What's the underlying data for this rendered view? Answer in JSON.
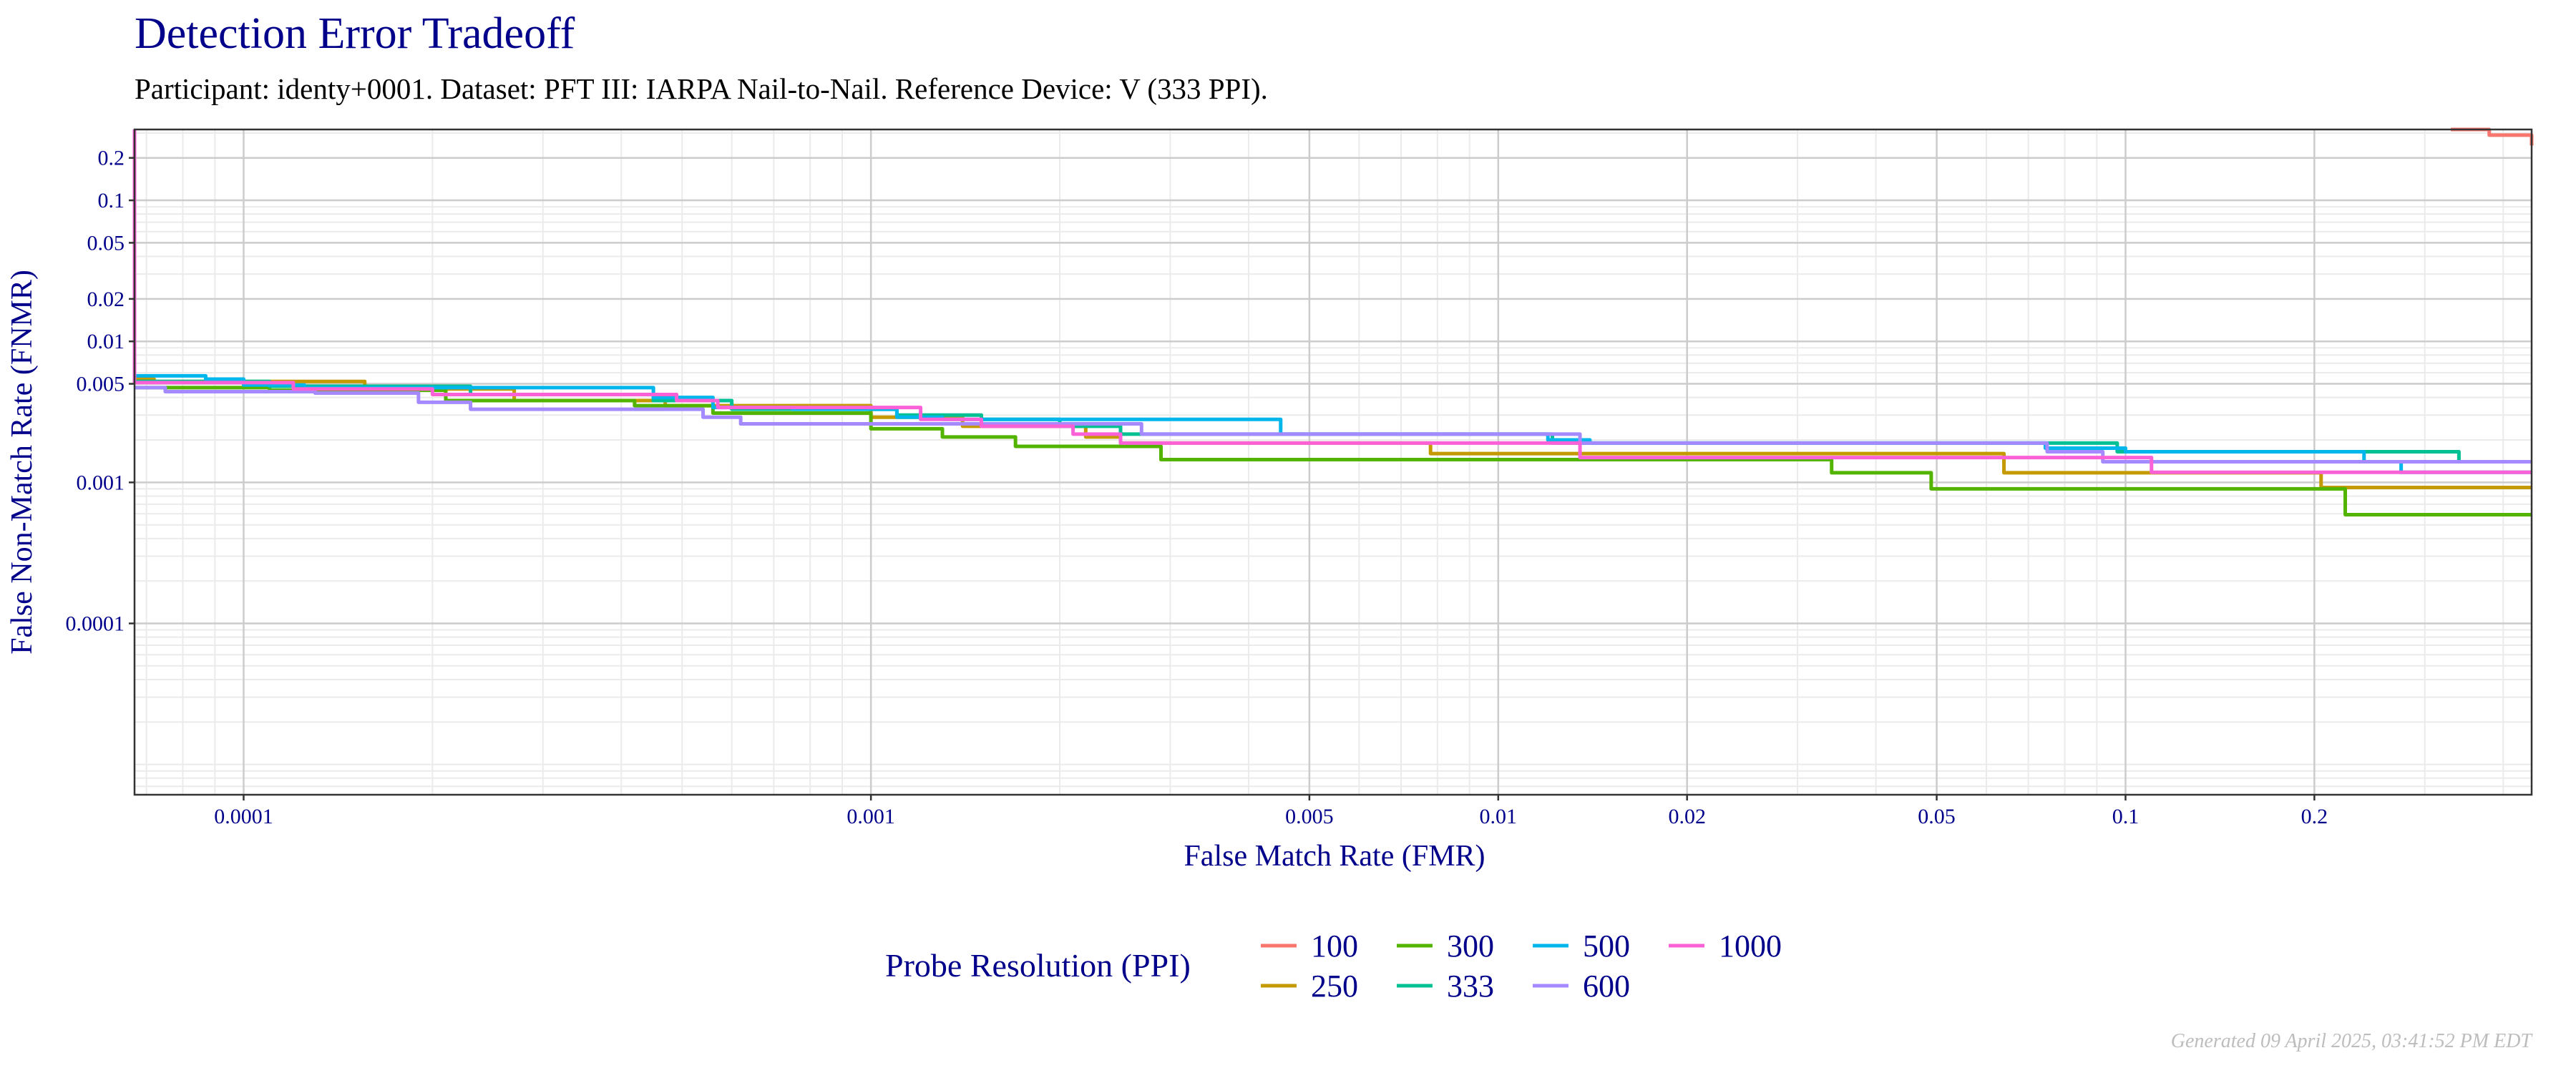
{
  "title": "Detection Error Tradeoff",
  "subtitle": "Participant: identy+0001. Dataset: PFT III: IARPA Nail-to-Nail. Reference Device: V (333 PPI).",
  "footer": "Generated 09 April 2025, 03:41:52 PM EDT",
  "chart_data": {
    "type": "line",
    "step": true,
    "xlabel": "False Match Rate (FMR)",
    "ylabel": "False Non-Match Rate (FNMR)",
    "xscale": "log",
    "yscale": "log",
    "xlim": [
      6.7e-05,
      0.444
    ],
    "ylim": [
      6.1e-06,
      0.318
    ],
    "grid": true,
    "xticks": [
      0.0001,
      0.001,
      0.005,
      0.01,
      0.02,
      0.05,
      0.1,
      0.2
    ],
    "xtick_labels": [
      "0.0001",
      "0.001",
      "0.005",
      "0.01",
      "0.02",
      "0.05",
      "0.1",
      "0.2"
    ],
    "yticks": [
      0.2,
      0.1,
      0.05,
      0.02,
      0.01,
      0.005,
      0.001,
      0.0001
    ],
    "ytick_labels": [
      "0.2",
      "0.1",
      "0.05",
      "0.02",
      "0.01",
      "0.005",
      "0.001",
      "0.0001"
    ],
    "legend": {
      "title": "Probe Resolution (PPI)",
      "placement": "bottom"
    },
    "series": [
      {
        "name": "100",
        "color": "#F8766D",
        "points": [
          [
            0.33,
            0.318
          ],
          [
            0.38,
            0.29
          ],
          [
            0.444,
            0.245
          ]
        ]
      },
      {
        "name": "250",
        "color": "#C49A00",
        "points": [
          [
            6.7e-05,
            0.0054
          ],
          [
            7.2e-05,
            0.0052
          ],
          [
            0.000156,
            0.0046
          ],
          [
            0.00027,
            0.0038
          ],
          [
            0.00047,
            0.0035
          ],
          [
            0.001,
            0.0029
          ],
          [
            0.0014,
            0.0025
          ],
          [
            0.0022,
            0.0021
          ],
          [
            0.0025,
            0.0019
          ],
          [
            0.0078,
            0.0016
          ],
          [
            0.064,
            0.00117
          ],
          [
            0.205,
            0.00092
          ]
        ]
      },
      {
        "name": "300",
        "color": "#53B400",
        "points": [
          [
            6.7e-05,
            0.0047
          ],
          [
            0.00011,
            0.0045
          ],
          [
            0.00021,
            0.0038
          ],
          [
            0.00042,
            0.0035
          ],
          [
            0.00056,
            0.0031
          ],
          [
            0.001,
            0.0024
          ],
          [
            0.0013,
            0.0021
          ],
          [
            0.0017,
            0.0018
          ],
          [
            0.0029,
            0.00145
          ],
          [
            0.034,
            0.00117
          ],
          [
            0.049,
            0.0009
          ],
          [
            0.224,
            0.00059
          ]
        ]
      },
      {
        "name": "333",
        "color": "#00C094",
        "points": [
          [
            6.7e-05,
            0.0052
          ],
          [
            0.00011,
            0.0048
          ],
          [
            0.00023,
            0.0042
          ],
          [
            0.00045,
            0.0038
          ],
          [
            0.0006,
            0.0033
          ],
          [
            0.0011,
            0.003
          ],
          [
            0.0015,
            0.0028
          ],
          [
            0.002,
            0.0025
          ],
          [
            0.0025,
            0.0022
          ],
          [
            0.0122,
            0.0019
          ],
          [
            0.097,
            0.00165
          ],
          [
            0.34,
            0.0014
          ]
        ]
      },
      {
        "name": "500",
        "color": "#00B6EB",
        "points": [
          [
            6.7e-05,
            0.0057
          ],
          [
            8.7e-05,
            0.0054
          ],
          [
            0.0001,
            0.0049
          ],
          [
            0.000125,
            0.0047
          ],
          [
            0.00045,
            0.004
          ],
          [
            0.00056,
            0.0034
          ],
          [
            0.00075,
            0.0033
          ],
          [
            0.0011,
            0.0029
          ],
          [
            0.0013,
            0.0028
          ],
          [
            0.0045,
            0.0022
          ],
          [
            0.012,
            0.002
          ],
          [
            0.014,
            0.0019
          ],
          [
            0.0745,
            0.00175
          ],
          [
            0.1,
            0.00165
          ],
          [
            0.24,
            0.0014
          ],
          [
            0.275,
            0.00118
          ]
        ]
      },
      {
        "name": "600",
        "color": "#A58AFF",
        "points": [
          [
            6.7e-05,
            0.0047
          ],
          [
            7.5e-05,
            0.0044
          ],
          [
            0.00013,
            0.0043
          ],
          [
            0.00019,
            0.0037
          ],
          [
            0.00023,
            0.0033
          ],
          [
            0.00054,
            0.0029
          ],
          [
            0.00062,
            0.0026
          ],
          [
            0.0027,
            0.0022
          ],
          [
            0.0135,
            0.0019
          ],
          [
            0.075,
            0.00165
          ],
          [
            0.092,
            0.0014
          ]
        ]
      },
      {
        "name": "1000",
        "color": "#FB61D7",
        "points": [
          [
            6.7e-05,
            0.318
          ],
          [
            6.7e-05,
            0.0051
          ],
          [
            0.00012,
            0.0046
          ],
          [
            0.0002,
            0.0042
          ],
          [
            0.00049,
            0.0038
          ],
          [
            0.00057,
            0.0034
          ],
          [
            0.0012,
            0.0028
          ],
          [
            0.0015,
            0.0025
          ],
          [
            0.0021,
            0.0022
          ],
          [
            0.0025,
            0.0019
          ],
          [
            0.0135,
            0.0015
          ],
          [
            0.11,
            0.00118
          ]
        ]
      }
    ]
  }
}
